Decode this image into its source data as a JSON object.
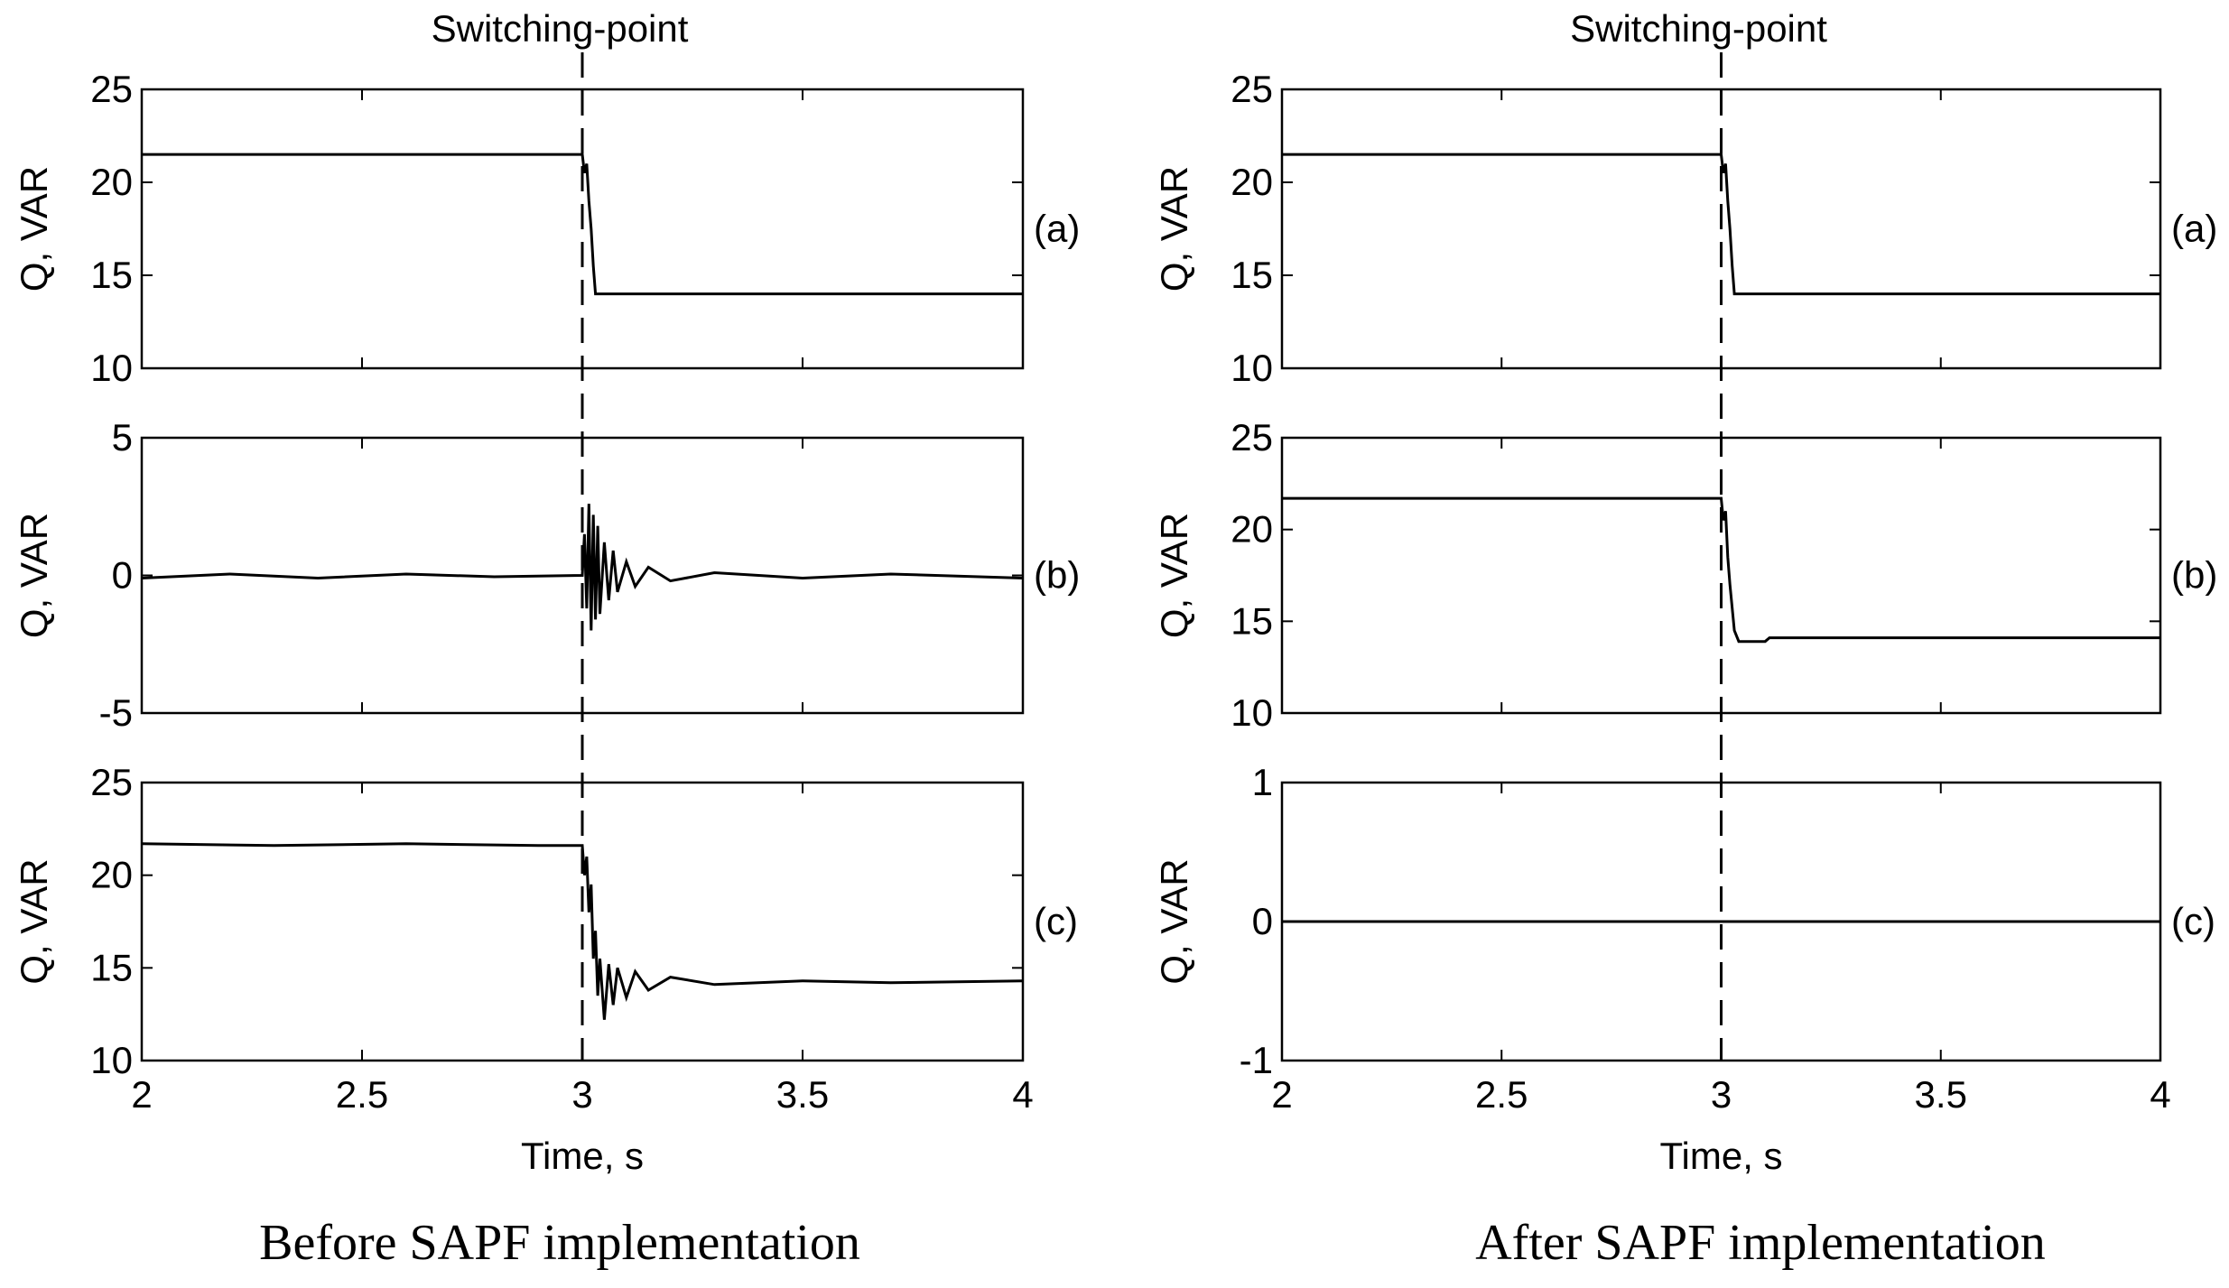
{
  "figure": {
    "left_caption": "Before SAPF implementation",
    "right_caption": "After SAPF implementation"
  },
  "chart_data": [
    {
      "type": "line",
      "column": "before",
      "panel_tag": "(a)",
      "title": "Switching-point",
      "ylabel": "Q, VAR",
      "xlabel": "",
      "xlim": [
        2,
        4
      ],
      "ylim": [
        10,
        25
      ],
      "yticks": [
        10,
        15,
        20,
        25
      ],
      "xticks": [
        2,
        2.5,
        3,
        3.5,
        4
      ],
      "show_xticklabels": false,
      "switching_point": 3,
      "x": [
        2.0,
        3.0,
        3.005,
        3.01,
        3.015,
        3.02,
        3.025,
        3.03,
        4.0
      ],
      "y": [
        21.5,
        21.5,
        20.5,
        21.0,
        19.0,
        17.5,
        15.5,
        14.0,
        14.0
      ]
    },
    {
      "type": "line",
      "column": "before",
      "panel_tag": "(b)",
      "ylabel": "Q, VAR",
      "xlabel": "",
      "xlim": [
        2,
        4
      ],
      "ylim": [
        -5,
        5
      ],
      "yticks": [
        -5,
        0,
        5
      ],
      "xticks": [
        2,
        2.5,
        3,
        3.5,
        4
      ],
      "show_xticklabels": false,
      "switching_point": 3,
      "x": [
        2.0,
        2.2,
        2.4,
        2.6,
        2.8,
        3.0,
        3.005,
        3.01,
        3.015,
        3.02,
        3.025,
        3.03,
        3.035,
        3.04,
        3.05,
        3.06,
        3.07,
        3.08,
        3.1,
        3.12,
        3.15,
        3.2,
        3.3,
        3.5,
        3.7,
        4.0
      ],
      "y": [
        -0.1,
        0.05,
        -0.1,
        0.05,
        -0.05,
        0.0,
        1.5,
        -1.2,
        2.6,
        -2.0,
        2.2,
        -1.6,
        1.8,
        -1.4,
        1.2,
        -0.9,
        0.9,
        -0.6,
        0.5,
        -0.4,
        0.3,
        -0.2,
        0.1,
        -0.1,
        0.05,
        -0.1
      ]
    },
    {
      "type": "line",
      "column": "before",
      "panel_tag": "(c)",
      "ylabel": "Q, VAR",
      "xlabel": "Time, s",
      "xlim": [
        2,
        4
      ],
      "ylim": [
        10,
        25
      ],
      "yticks": [
        10,
        15,
        20,
        25
      ],
      "xticks": [
        2,
        2.5,
        3,
        3.5,
        4
      ],
      "show_xticklabels": true,
      "switching_point": 3,
      "x": [
        2.0,
        2.3,
        2.6,
        2.9,
        3.0,
        3.005,
        3.01,
        3.015,
        3.02,
        3.025,
        3.03,
        3.035,
        3.04,
        3.05,
        3.06,
        3.07,
        3.08,
        3.1,
        3.12,
        3.15,
        3.2,
        3.3,
        3.5,
        3.7,
        4.0
      ],
      "y": [
        21.7,
        21.6,
        21.7,
        21.6,
        21.6,
        20.0,
        21.0,
        18.0,
        19.5,
        15.5,
        17.0,
        13.5,
        15.5,
        12.2,
        15.2,
        13.0,
        15.0,
        13.4,
        14.8,
        13.8,
        14.5,
        14.1,
        14.3,
        14.2,
        14.3
      ]
    },
    {
      "type": "line",
      "column": "after",
      "panel_tag": "(a)",
      "title": "Switching-point",
      "ylabel": "Q, VAR",
      "xlabel": "",
      "xlim": [
        2,
        4
      ],
      "ylim": [
        10,
        25
      ],
      "yticks": [
        10,
        15,
        20,
        25
      ],
      "xticks": [
        2,
        2.5,
        3,
        3.5,
        4
      ],
      "show_xticklabels": false,
      "switching_point": 3,
      "x": [
        2.0,
        3.0,
        3.005,
        3.01,
        3.015,
        3.02,
        3.025,
        3.03,
        4.0
      ],
      "y": [
        21.5,
        21.5,
        20.5,
        21.0,
        19.0,
        17.5,
        15.5,
        14.0,
        14.0
      ]
    },
    {
      "type": "line",
      "column": "after",
      "panel_tag": "(b)",
      "ylabel": "Q, VAR",
      "xlabel": "",
      "xlim": [
        2,
        4
      ],
      "ylim": [
        10,
        25
      ],
      "yticks": [
        10,
        15,
        20,
        25
      ],
      "xticks": [
        2,
        2.5,
        3,
        3.5,
        4
      ],
      "show_xticklabels": false,
      "switching_point": 3,
      "x": [
        2.0,
        3.0,
        3.005,
        3.01,
        3.015,
        3.02,
        3.03,
        3.04,
        3.1,
        3.11,
        4.0
      ],
      "y": [
        21.7,
        21.7,
        20.5,
        21.0,
        18.5,
        17.0,
        14.5,
        13.9,
        13.9,
        14.1,
        14.1
      ]
    },
    {
      "type": "line",
      "column": "after",
      "panel_tag": "(c)",
      "ylabel": "Q, VAR",
      "xlabel": "Time, s",
      "xlim": [
        2,
        4
      ],
      "ylim": [
        -1,
        1
      ],
      "yticks": [
        -1,
        0,
        1
      ],
      "xticks": [
        2,
        2.5,
        3,
        3.5,
        4
      ],
      "show_xticklabels": true,
      "switching_point": 3,
      "x": [
        2.0,
        4.0
      ],
      "y": [
        0.0,
        0.0
      ]
    }
  ]
}
